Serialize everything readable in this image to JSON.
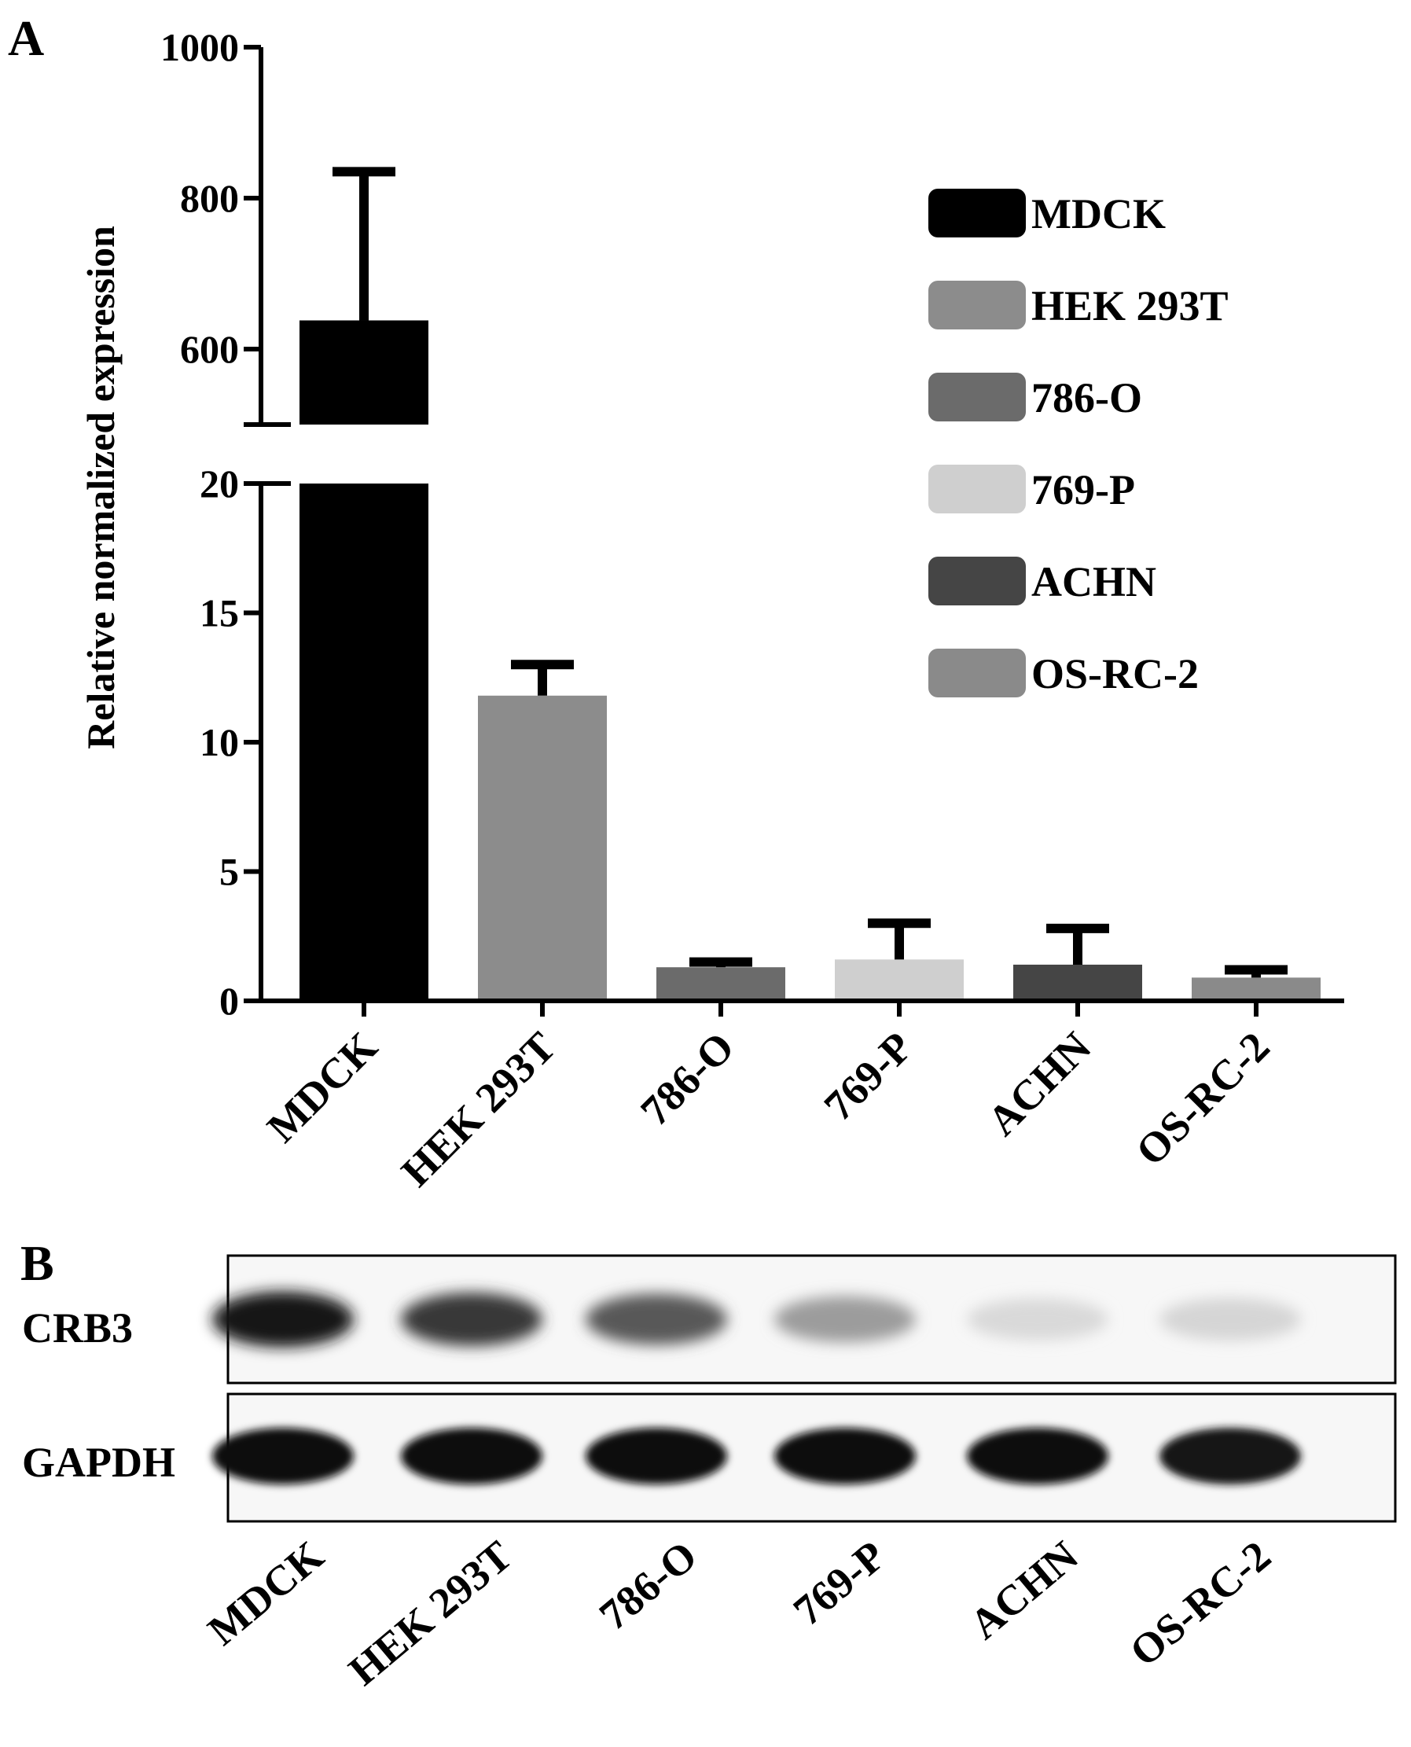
{
  "panel_labels": {
    "a": "A",
    "b": "B"
  },
  "chart_data": {
    "type": "bar",
    "ylabel": "Relative normalized expression",
    "y_axis_break": true,
    "ylim_lower": [
      0,
      20
    ],
    "ylim_upper": [
      500,
      1000
    ],
    "yticks_lower": [
      0,
      5,
      10,
      15,
      20
    ],
    "yticks_upper": [
      600,
      800,
      1000
    ],
    "categories": [
      "MDCK",
      "HEK  293T",
      "786-O",
      "769-P",
      "ACHN",
      "OS-RC-2"
    ],
    "values": [
      638,
      11.8,
      1.3,
      1.6,
      1.4,
      0.9
    ],
    "error_upper": [
      835,
      13.0,
      1.5,
      3.0,
      2.8,
      1.2
    ],
    "colors": [
      "#000000",
      "#8c8c8c",
      "#6b6b6b",
      "#cfcfcf",
      "#454545",
      "#8a8a8a"
    ],
    "legend": [
      "MDCK",
      "HEK 293T",
      "786-O",
      "769-P",
      "ACHN",
      "OS-RC-2"
    ],
    "legend_position": "top-right",
    "grid": false
  },
  "blot": {
    "rows": [
      {
        "label": "CRB3",
        "intensities": [
          0.95,
          0.8,
          0.65,
          0.35,
          0.08,
          0.1
        ]
      },
      {
        "label": "GAPDH",
        "intensities": [
          1.0,
          1.0,
          1.0,
          1.0,
          1.0,
          0.95
        ]
      }
    ],
    "lane_labels": [
      "MDCK",
      "HEK  293T",
      "786-O",
      "769-P",
      "ACHN",
      "OS-RC-2"
    ]
  }
}
